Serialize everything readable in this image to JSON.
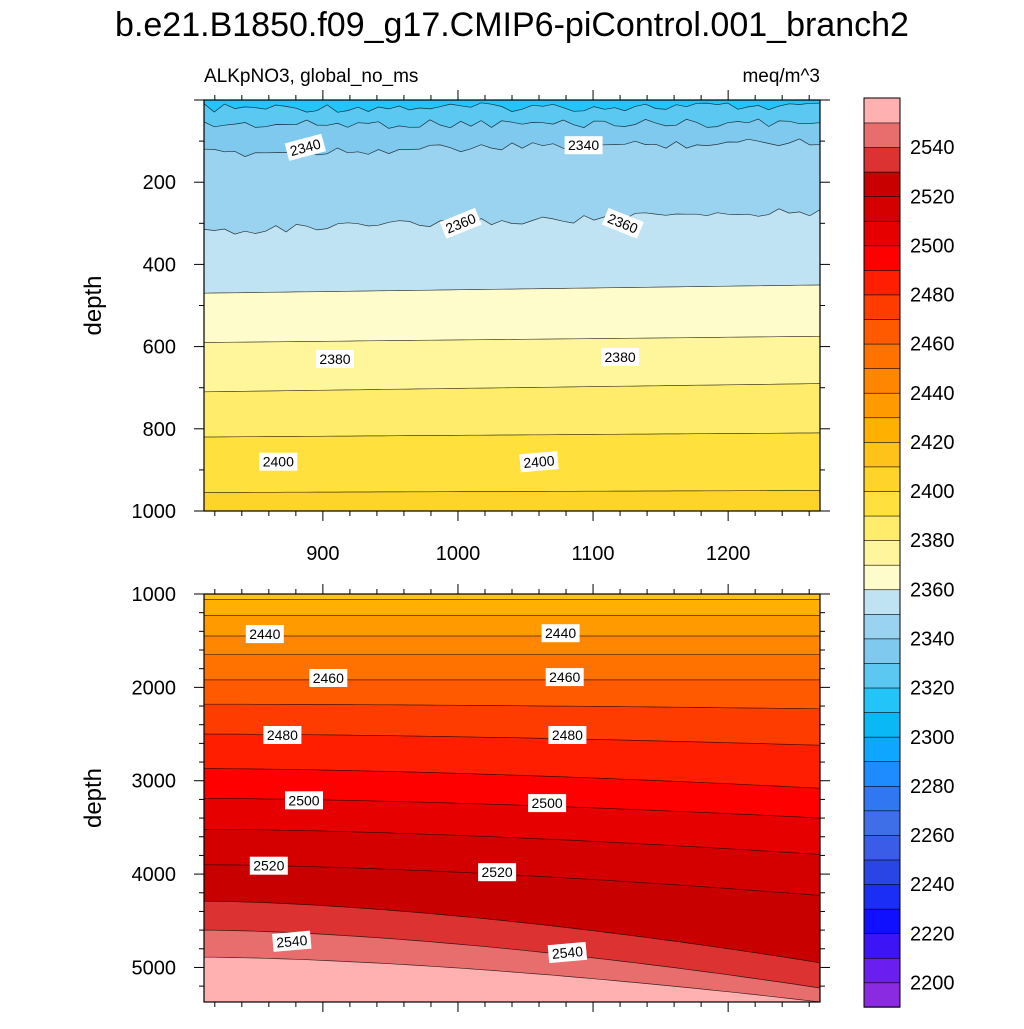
{
  "chart_data": {
    "type": "contour",
    "title": "b.e21.B1850.f09_g17.CMIP6-piControl.001_branch2",
    "subtitle_left": "ALKpNO3, global_no_ms",
    "subtitle_right": "meq/m^3",
    "colorbar": {
      "min": 2190,
      "max": 2560,
      "step": 10,
      "colors": [
        "#8a2be2",
        "#6a1ef0",
        "#3c14f5",
        "#1010ff",
        "#1a2ef5",
        "#2a45e6",
        "#3a5ce6",
        "#3f6fe8",
        "#2f78f2",
        "#1e8cff",
        "#0fa6ff",
        "#0ab8f5",
        "#23c4f8",
        "#5ac8f0",
        "#7fc8ee",
        "#9ad3f0",
        "#bfe3f2",
        "#fffccb",
        "#fff59a",
        "#ffec6b",
        "#ffe03c",
        "#ffd42a",
        "#ffc21a",
        "#ffb000",
        "#ff9a00",
        "#ff8600",
        "#ff7200",
        "#ff5a00",
        "#ff3c00",
        "#ff1e00",
        "#ff0000",
        "#e60000",
        "#d40000",
        "#c80000",
        "#dc3232",
        "#e86e6e",
        "#ffb0b0"
      ],
      "tick_labels": [
        "2200",
        "2220",
        "2240",
        "2260",
        "2280",
        "2300",
        "2320",
        "2340",
        "2360",
        "2380",
        "2400",
        "2420",
        "2440",
        "2460",
        "2480",
        "2500",
        "2520",
        "2540"
      ]
    },
    "panels": [
      {
        "name": "upper",
        "x_range": [
          812,
          1268
        ],
        "y_range": [
          0,
          1000
        ],
        "ylabel": "depth",
        "x_tick_labels": [
          "900",
          "1000",
          "1100",
          "1200"
        ],
        "y_tick_labels": [
          "200",
          "400",
          "600",
          "800",
          "1000"
        ],
        "contours": [
          {
            "level": 2320,
            "depth_left": 20,
            "depth_right": 15,
            "wiggle": true
          },
          {
            "level": 2330,
            "depth_left": 60,
            "depth_right": 55,
            "wiggle": true
          },
          {
            "level": 2340,
            "depth_left": 130,
            "depth_right": 100,
            "wiggle": true
          },
          {
            "level": 2350,
            "depth_left": 320,
            "depth_right": 270,
            "wiggle": true
          },
          {
            "level": 2360,
            "depth_left": 470,
            "depth_right": 450,
            "wiggle": false
          },
          {
            "level": 2370,
            "depth_left": 590,
            "depth_right": 575,
            "wiggle": false
          },
          {
            "level": 2380,
            "depth_left": 710,
            "depth_right": 690,
            "wiggle": false
          },
          {
            "level": 2390,
            "depth_left": 820,
            "depth_right": 810,
            "wiggle": false
          },
          {
            "level": 2400,
            "depth_left": 955,
            "depth_right": 950,
            "wiggle": false
          }
        ],
        "labels": [
          {
            "text": "2340",
            "x": 887,
            "depth": 115,
            "angle": -15
          },
          {
            "text": "2340",
            "x": 1093,
            "depth": 110,
            "angle": 0
          },
          {
            "text": "2360",
            "x": 1002,
            "depth": 300,
            "angle": -22
          },
          {
            "text": "2360",
            "x": 1122,
            "depth": 300,
            "angle": 22
          },
          {
            "text": "2380",
            "x": 909,
            "depth": 630,
            "angle": 0
          },
          {
            "text": "2380",
            "x": 1120,
            "depth": 625,
            "angle": 0
          },
          {
            "text": "2400",
            "x": 867,
            "depth": 880,
            "angle": 0
          },
          {
            "text": "2400",
            "x": 1060,
            "depth": 880,
            "angle": -5
          }
        ]
      },
      {
        "name": "lower",
        "x_range": [
          812,
          1268
        ],
        "y_range": [
          1000,
          5370
        ],
        "ylabel": "depth",
        "x_tick_labels": [],
        "y_tick_labels": [
          "1000",
          "2000",
          "3000",
          "4000",
          "5000"
        ],
        "contours": [
          {
            "level": 2420,
            "depth_left": 1060,
            "depth_right": 1060,
            "wiggle": false
          },
          {
            "level": 2430,
            "depth_left": 1230,
            "depth_right": 1230,
            "wiggle": false
          },
          {
            "level": 2440,
            "depth_left": 1450,
            "depth_right": 1450,
            "wiggle": false
          },
          {
            "level": 2450,
            "depth_left": 1650,
            "depth_right": 1650,
            "wiggle": false
          },
          {
            "level": 2460,
            "depth_left": 1920,
            "depth_right": 1920,
            "wiggle": false
          },
          {
            "level": 2470,
            "depth_left": 2180,
            "depth_right": 2230,
            "wiggle": false
          },
          {
            "level": 2480,
            "depth_left": 2500,
            "depth_right": 2620,
            "wiggle": false
          },
          {
            "level": 2490,
            "depth_left": 2870,
            "depth_right": 3080,
            "wiggle": false
          },
          {
            "level": 2500,
            "depth_left": 3190,
            "depth_right": 3400,
            "wiggle": false
          },
          {
            "level": 2510,
            "depth_left": 3520,
            "depth_right": 3790,
            "wiggle": false
          },
          {
            "level": 2520,
            "depth_left": 3900,
            "depth_right": 4230,
            "wiggle": false
          },
          {
            "level": 2530,
            "depth_left": 4290,
            "depth_right": 4950,
            "wiggle": false
          },
          {
            "level": 2540,
            "depth_left": 4600,
            "depth_right": 5220,
            "wiggle": false
          },
          {
            "level": 2550,
            "depth_left": 4890,
            "depth_right": 5370,
            "wiggle": false
          }
        ],
        "labels": [
          {
            "text": "2440",
            "x": 857,
            "depth": 1430,
            "angle": 0
          },
          {
            "text": "2440",
            "x": 1076,
            "depth": 1420,
            "angle": 0
          },
          {
            "text": "2460",
            "x": 904,
            "depth": 1900,
            "angle": 0
          },
          {
            "text": "2460",
            "x": 1079,
            "depth": 1890,
            "angle": 0
          },
          {
            "text": "2480",
            "x": 870,
            "depth": 2510,
            "angle": 0
          },
          {
            "text": "2480",
            "x": 1081,
            "depth": 2510,
            "angle": 0
          },
          {
            "text": "2500",
            "x": 886,
            "depth": 3210,
            "angle": 0
          },
          {
            "text": "2500",
            "x": 1066,
            "depth": 3240,
            "angle": 0
          },
          {
            "text": "2520",
            "x": 860,
            "depth": 3910,
            "angle": 0
          },
          {
            "text": "2520",
            "x": 1029,
            "depth": 3980,
            "angle": 0
          },
          {
            "text": "2540",
            "x": 877,
            "depth": 4720,
            "angle": -5
          },
          {
            "text": "2540",
            "x": 1081,
            "depth": 4840,
            "angle": -5
          }
        ]
      }
    ]
  }
}
